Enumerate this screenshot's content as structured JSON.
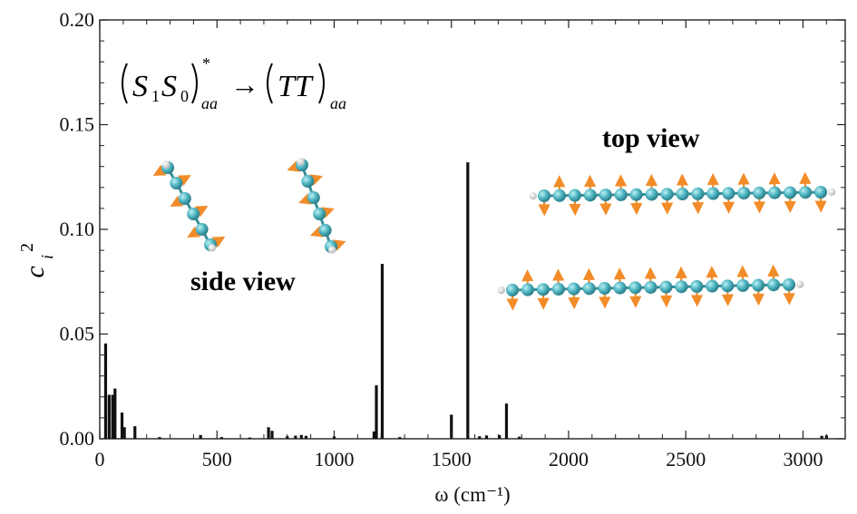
{
  "chart_data": {
    "type": "bar",
    "title": "",
    "xlabel": "ω (cm⁻¹)",
    "ylabel": "c_i^2",
    "xlim": [
      0,
      3180
    ],
    "ylim": [
      0,
      0.2
    ],
    "xticks": [
      0,
      500,
      1000,
      1500,
      2000,
      2500,
      3000
    ],
    "yticks": [
      0.0,
      0.05,
      0.1,
      0.15,
      0.2
    ],
    "xtick_labels": [
      "0",
      "500",
      "1000",
      "1500",
      "2000",
      "2500",
      "3000"
    ],
    "ytick_labels": [
      "0.00",
      "0.05",
      "0.10",
      "0.15",
      "0.20"
    ],
    "grid": false,
    "series": [
      {
        "x": [
          25,
          40,
          55,
          65,
          95,
          105,
          150,
          255,
          430,
          520,
          640,
          720,
          735,
          800,
          835,
          860,
          880,
          1000,
          1170,
          1180,
          1205,
          1280,
          1500,
          1570,
          1620,
          1650,
          1705,
          1735,
          1790,
          3080,
          3100
        ],
        "values": [
          0.0455,
          0.021,
          0.021,
          0.024,
          0.0125,
          0.0055,
          0.006,
          0.0008,
          0.0018,
          0.0008,
          0.0006,
          0.0055,
          0.0038,
          0.0012,
          0.0015,
          0.0018,
          0.0014,
          0.0011,
          0.0035,
          0.0255,
          0.0835,
          0.0008,
          0.0115,
          0.132,
          0.0012,
          0.0016,
          0.0018,
          0.0168,
          0.001,
          0.0014,
          0.0016
        ]
      }
    ],
    "annotations": {
      "side_view": "side view",
      "top_view": "top view"
    },
    "equation": {
      "lhs_main": "S",
      "lhs_sub1": "1",
      "lhs_mid": "S",
      "lhs_sub0": "0",
      "lhs_star": "*",
      "lhs_sub": "aa",
      "arrow": "→",
      "rhs_main": "TT",
      "rhs_sub": "aa"
    },
    "colors": {
      "bar": "#111111",
      "atom_carbon": "#4fb6c2",
      "arrow": "#f28c28",
      "hydrogen": "#e8e8e8"
    }
  }
}
